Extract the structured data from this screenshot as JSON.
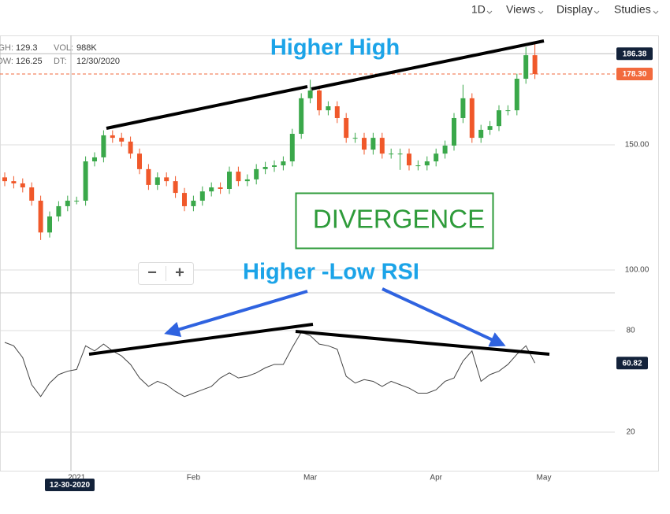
{
  "ui": {
    "menu": [
      "1D",
      "Views",
      "Display",
      "Studies"
    ],
    "zoom_out": "−",
    "zoom_in": "+"
  },
  "info": {
    "high_label": "HIGH:",
    "high": 129.3,
    "low_label": "LOW:",
    "low": 126.25,
    "vol_label": "VOL:",
    "vol": "988K",
    "dt_label": "DT:",
    "dt": "12/30/2020"
  },
  "chart_data": {
    "type": "candlestick",
    "categories": [
      null,
      null,
      null,
      null,
      null,
      null,
      null,
      null,
      "2021",
      null,
      null,
      null,
      null,
      null,
      null,
      null,
      null,
      null,
      null,
      null,
      null,
      "Feb",
      null,
      null,
      null,
      null,
      null,
      null,
      null,
      null,
      null,
      null,
      null,
      null,
      "Mar",
      null,
      null,
      null,
      null,
      null,
      null,
      null,
      null,
      null,
      null,
      null,
      null,
      null,
      "Apr",
      null,
      null,
      null,
      null,
      null,
      null,
      null,
      null,
      null,
      null,
      null,
      "May",
      null
    ],
    "open": [
      137,
      135.5,
      134.6,
      133,
      127.7,
      115,
      121.4,
      125.5,
      127.7,
      127.7,
      143.4,
      145,
      153.8,
      152.8,
      151.3,
      146.5,
      140.3,
      134,
      137,
      135.5,
      130.8,
      125.5,
      127.7,
      131.4,
      133,
      132.4,
      139.3,
      135.5,
      136.2,
      140.3,
      141.2,
      141.8,
      143.4,
      154.4,
      168.6,
      171.7,
      163.8,
      165.4,
      160.7,
      152.8,
      152.8,
      148.1,
      152.8,
      146.5,
      146.5,
      146.5,
      141.8,
      141.8,
      143.4,
      146.5,
      149.7,
      160.7,
      168.6,
      152.8,
      156,
      157.5,
      163.8,
      163.8,
      176.4,
      185.8,
      null,
      null
    ],
    "high": [
      139,
      137.5,
      136.6,
      135,
      129.7,
      123.4,
      127.5,
      129.7,
      129.3,
      145.4,
      147,
      155.8,
      155.8,
      154.8,
      153.3,
      148.5,
      142.3,
      139,
      139,
      137.5,
      132.8,
      129.7,
      133.4,
      135,
      135,
      141.3,
      141.3,
      138.2,
      142.3,
      143.2,
      143.8,
      145.4,
      156.4,
      170.6,
      176,
      173.7,
      167.4,
      167.4,
      162.7,
      154.8,
      154.8,
      154.8,
      154.8,
      148.5,
      148.5,
      148.5,
      143.8,
      145.4,
      148.5,
      151.7,
      162.7,
      174,
      170.6,
      158,
      159.5,
      165.8,
      165.8,
      178.4,
      189,
      191,
      null,
      null
    ],
    "low": [
      133.5,
      132.6,
      131,
      125.7,
      112,
      113,
      119.4,
      123.5,
      126.25,
      125.7,
      141.4,
      143,
      150.8,
      149.3,
      144.5,
      138.3,
      132,
      132,
      133.5,
      128.8,
      123.5,
      123.5,
      125.7,
      129.4,
      130.4,
      130.4,
      133.5,
      133.5,
      134.2,
      138.3,
      139.2,
      139.8,
      141.4,
      152.4,
      166.6,
      161.8,
      161.8,
      158.7,
      150.8,
      150.8,
      146.1,
      146.1,
      144.5,
      144.5,
      140,
      139.8,
      139.8,
      139.8,
      141.4,
      144.5,
      147.7,
      158.7,
      150.8,
      150.8,
      154,
      155.5,
      161.8,
      161.8,
      174.4,
      176.3,
      null,
      null
    ],
    "close": [
      135.5,
      134.6,
      133,
      127.7,
      115,
      121.4,
      125.5,
      127.7,
      127.7,
      143.4,
      145,
      153.8,
      152.8,
      151.3,
      146.5,
      140.3,
      134,
      137,
      135.5,
      130.8,
      125.5,
      127.7,
      131.4,
      133,
      132.4,
      139.3,
      135.5,
      136.2,
      140.3,
      141.2,
      141.8,
      143.4,
      154.4,
      168.6,
      171.7,
      163.8,
      165.4,
      160.7,
      152.8,
      152.8,
      148.1,
      152.8,
      146.5,
      146.5,
      146.5,
      141.8,
      141.8,
      143.4,
      146.5,
      149.7,
      160.7,
      168.6,
      152.8,
      156,
      157.5,
      163.8,
      163.8,
      176.4,
      185.8,
      178.3,
      null,
      null
    ],
    "up_color": "#3aa84a",
    "down_color": "#f0582a",
    "ylim": [
      90.9,
      193.7
    ],
    "yticks": [
      {
        "value": 100,
        "label": "100.00"
      },
      {
        "value": 150,
        "label": "150.00"
      }
    ],
    "price_tags": [
      186.38,
      {
        "value": 178.3,
        "label": "178.30"
      }
    ],
    "price_tag_colors": [
      "#13223a",
      "#f26a3d"
    ],
    "grid": true,
    "rsi": {
      "values": [
        73,
        71,
        64,
        48,
        41,
        49,
        54,
        56,
        57,
        71,
        68,
        72,
        68,
        65,
        60,
        52,
        47,
        50,
        48,
        44,
        41,
        43,
        45,
        47,
        52,
        55,
        52,
        53,
        55,
        58,
        60,
        60,
        70,
        79,
        77,
        72,
        71,
        69,
        53,
        49,
        51,
        50,
        47,
        50,
        48,
        46,
        43,
        43,
        45,
        50,
        52,
        62,
        68,
        50,
        54,
        56,
        60,
        66,
        71,
        60.82,
        null,
        null
      ],
      "color": "#444444",
      "tag_color": "#13223a",
      "ylim": [
        -2.8,
        102.3
      ],
      "yticks": [
        20,
        80
      ]
    },
    "annotations": [
      "Higher High",
      "DIVERGENCE",
      "Higher -Low RSI"
    ],
    "crosshair_label": "12-30-2020"
  }
}
